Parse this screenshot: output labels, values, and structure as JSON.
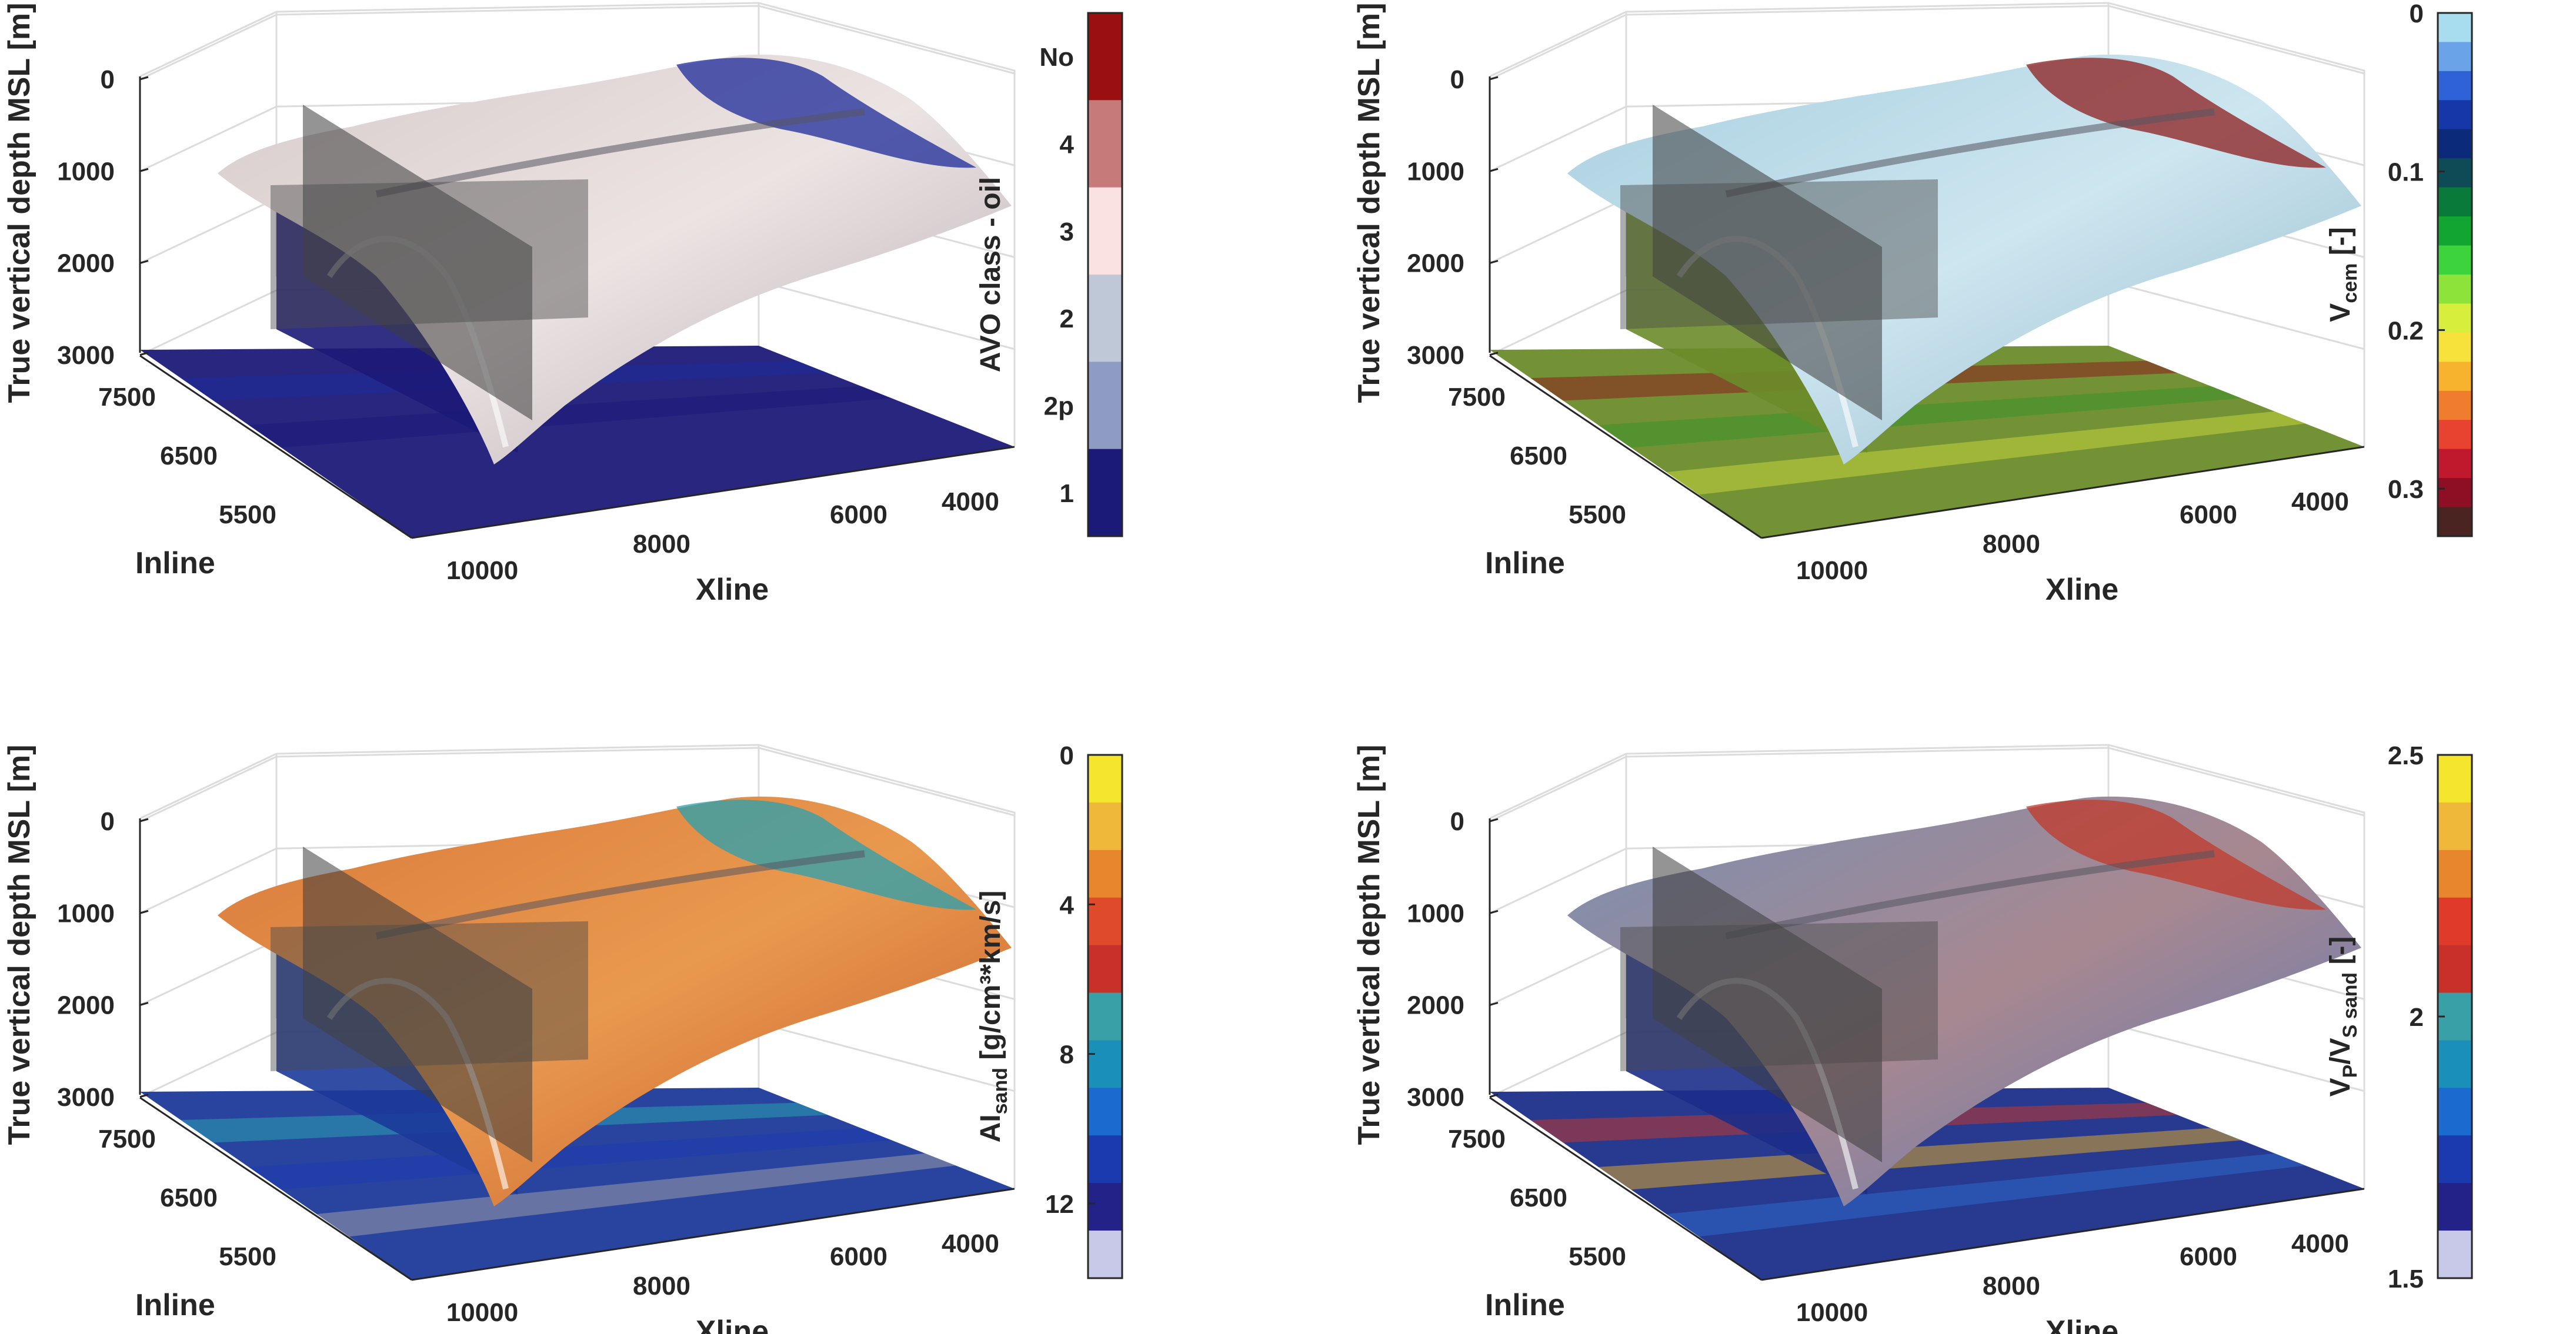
{
  "chart_data": [
    {
      "type": "3d-surface",
      "panel": "top-left",
      "zlabel": "True vertical depth MSL [m]",
      "xlabel": "Xline",
      "ylabel": "Inline",
      "zticks": [
        "0",
        "1000",
        "2000",
        "3000"
      ],
      "zlim": [
        0,
        3200
      ],
      "xticks": [
        "10000",
        "8000",
        "6000",
        "4000"
      ],
      "yticks": [
        "7500",
        "6500",
        "5500"
      ],
      "colorbar": {
        "label": {
          "main": "AVO class - oil",
          "sub": "",
          "suffix": ""
        },
        "kind": "categorical",
        "categories": [
          "1",
          "2p",
          "2",
          "3",
          "4",
          "No"
        ],
        "colors": [
          "#1c1a78",
          "#8e9cc4",
          "#bfc8d6",
          "#fbe2e2",
          "#c77a7a",
          "#9a1010"
        ]
      },
      "surface_palette": [
        "#d7cbcb",
        "#ece3e3",
        "#b2aab0"
      ],
      "floor_color": "#1c1a78",
      "accent_colors": [
        "#1c2a9a",
        "#1c1a78"
      ]
    },
    {
      "type": "3d-surface",
      "panel": "top-right",
      "zlabel": "True vertical depth MSL [m]",
      "xlabel": "Xline",
      "ylabel": "Inline",
      "zticks": [
        "0",
        "1000",
        "2000",
        "3000"
      ],
      "zlim": [
        0,
        3200
      ],
      "xticks": [
        "10000",
        "8000",
        "6000",
        "4000"
      ],
      "yticks": [
        "7500",
        "6500",
        "5500"
      ],
      "colorbar": {
        "label": {
          "main": "V",
          "sub": "cem",
          "suffix": " [-]"
        },
        "kind": "discrete-continuous",
        "range": [
          0,
          0.33
        ],
        "ticks": [
          {
            "label": "0",
            "value": 0
          },
          {
            "label": "0.1",
            "value": 0.1
          },
          {
            "label": "0.2",
            "value": 0.2
          },
          {
            "label": "0.3",
            "value": 0.3
          }
        ],
        "colors": [
          "#a8dcef",
          "#6aa3e8",
          "#2f62d6",
          "#1537a8",
          "#0c2a7a",
          "#0d4c56",
          "#0a7a3a",
          "#12a531",
          "#3cd33c",
          "#8ee33a",
          "#d7ef3c",
          "#f6e23a",
          "#f8b32e",
          "#f07c2e",
          "#e84230",
          "#c0192e",
          "#8e0e24",
          "#4a2420"
        ]
      },
      "surface_palette": [
        "#a9cfdf",
        "#cde6f0",
        "#8fb6c8"
      ],
      "floor_color": "#6b8c2a",
      "accent_colors": [
        "#8c1e1e",
        "#3a8f2a",
        "#c2d43a"
      ]
    },
    {
      "type": "3d-surface",
      "panel": "bottom-left",
      "zlabel": "True vertical depth MSL [m]",
      "xlabel": "Xline",
      "ylabel": "Inline",
      "zticks": [
        "0",
        "1000",
        "2000",
        "3000"
      ],
      "zlim": [
        0,
        3200
      ],
      "xticks": [
        "10000",
        "8000",
        "6000",
        "4000"
      ],
      "yticks": [
        "7500",
        "6500",
        "5500"
      ],
      "colorbar": {
        "label": {
          "main": "AI",
          "sub": "sand",
          "suffix": " [g/cm³*km/s]"
        },
        "kind": "continuous",
        "range": [
          0,
          14
        ],
        "ticks": [
          {
            "label": "0",
            "value": 0
          },
          {
            "label": "4",
            "value": 4
          },
          {
            "label": "8",
            "value": 8
          },
          {
            "label": "12",
            "value": 12
          }
        ],
        "colors": [
          "#f4e62c",
          "#f0b83a",
          "#e8862e",
          "#df4a2a",
          "#c8302a",
          "#3aa0a8",
          "#1a90b8",
          "#1a6ad0",
          "#1c3ab0",
          "#222288",
          "#c8c8e8"
        ]
      },
      "surface_palette": [
        "#d97a3c",
        "#e9994e",
        "#c45a2c"
      ],
      "floor_color": "#1c3a9a",
      "accent_colors": [
        "#2aa0b0",
        "#1c3ab0",
        "#9a9aa6"
      ]
    },
    {
      "type": "3d-surface",
      "panel": "bottom-right",
      "zlabel": "True vertical depth MSL [m]",
      "xlabel": "Xline",
      "ylabel": "Inline",
      "zticks": [
        "0",
        "1000",
        "2000",
        "3000"
      ],
      "zlim": [
        0,
        3200
      ],
      "xticks": [
        "10000",
        "8000",
        "6000",
        "4000"
      ],
      "yticks": [
        "7500",
        "6500",
        "5500"
      ],
      "colorbar": {
        "label": {
          "main": "V",
          "sub": "P",
          "mid": "/V",
          "sub2": "S sand",
          "suffix": " [-]"
        },
        "kind": "continuous",
        "range": [
          1.5,
          2.5
        ],
        "ticks": [
          {
            "label": "2.5",
            "value": 2.5
          },
          {
            "label": "2",
            "value": 2
          },
          {
            "label": "1.5",
            "value": 1.5
          }
        ],
        "colors": [
          "#f4e62c",
          "#f0b83a",
          "#e8862e",
          "#df3a2a",
          "#c8302a",
          "#3aa0a8",
          "#1a90b8",
          "#1a6ad0",
          "#1c3ab0",
          "#222288",
          "#c8c8e8"
        ]
      },
      "surface_palette": [
        "#7a8fb2",
        "#a88890",
        "#5b7ab8"
      ],
      "floor_color": "#1c2e8a",
      "accent_colors": [
        "#c0392b",
        "#d7a62a",
        "#2a6ac8"
      ]
    }
  ]
}
